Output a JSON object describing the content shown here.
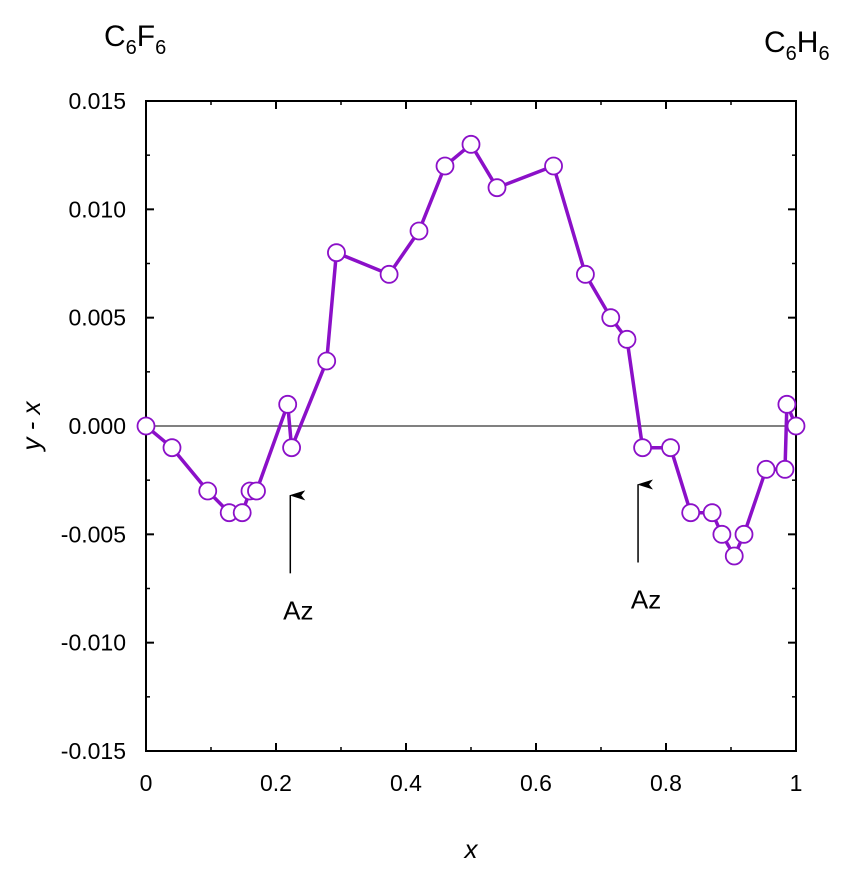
{
  "chart_data": {
    "type": "line",
    "xlabel": "x",
    "ylabel": "y - x",
    "xlim": [
      0,
      1
    ],
    "ylim": [
      -0.015,
      0.015
    ],
    "x_ticks": [
      0,
      0.2,
      0.4,
      0.6,
      0.8,
      1
    ],
    "x_tick_labels": [
      "0",
      "0.2",
      "0.4",
      "0.6",
      "0.8",
      "1"
    ],
    "y_ticks": [
      -0.015,
      -0.01,
      -0.005,
      0.0,
      0.005,
      0.01,
      0.015
    ],
    "y_tick_labels": [
      "-0.015",
      "-0.010",
      "-0.005",
      "0.000",
      "0.005",
      "0.010",
      "0.015"
    ],
    "grid": false,
    "zero_line": true,
    "series": [
      {
        "color": "#8b10c8",
        "marker_fill": "#ffffff",
        "x": [
          0,
          0.04,
          0.095,
          0.128,
          0.148,
          0.16,
          0.17,
          0.218,
          0.224,
          0.278,
          0.293,
          0.374,
          0.42,
          0.46,
          0.5,
          0.54,
          0.627,
          0.676,
          0.715,
          0.74,
          0.764,
          0.807,
          0.838,
          0.871,
          0.886,
          0.905,
          0.92,
          0.954,
          0.983,
          0.986,
          1.0
        ],
        "y": [
          0.0,
          -0.001,
          -0.003,
          -0.004,
          -0.004,
          -0.003,
          -0.003,
          0.001,
          -0.001,
          0.003,
          0.008,
          0.007,
          0.009,
          0.012,
          0.013,
          0.011,
          0.012,
          0.007,
          0.005,
          0.004,
          -0.001,
          -0.001,
          -0.004,
          -0.004,
          -0.005,
          -0.006,
          -0.005,
          -0.002,
          -0.002,
          0.001,
          0.0
        ]
      }
    ],
    "corner_labels": {
      "left": {
        "base1": "C",
        "sub1": "6",
        "base2": "F",
        "sub2": "6"
      },
      "right": {
        "base1": "C",
        "sub1": "6",
        "base2": "H",
        "sub2": "6"
      }
    },
    "annotations": [
      {
        "text": "Az",
        "x": 0.222,
        "y_tail": -0.0068,
        "y_head": -0.0032
      },
      {
        "text": "Az",
        "x": 0.757,
        "y_tail": -0.0063,
        "y_head": -0.0027
      }
    ]
  }
}
